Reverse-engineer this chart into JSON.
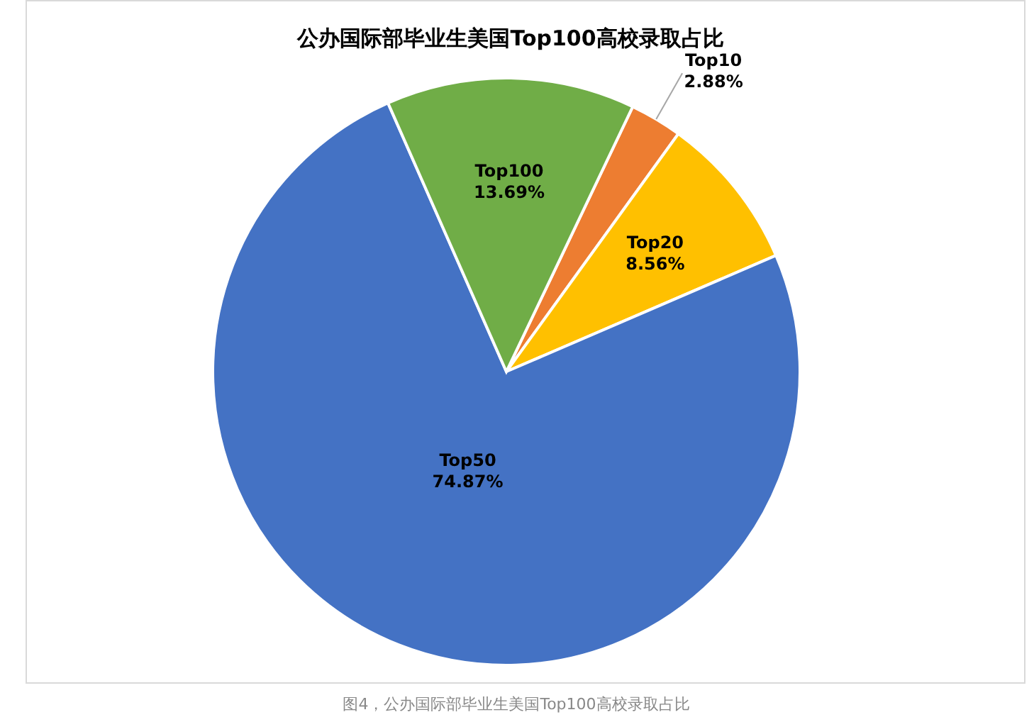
{
  "chart_data": {
    "type": "pie",
    "title": "公办国际部毕业生美国Top100高校录取占比",
    "categories": [
      "Top10",
      "Top20",
      "Top50",
      "Top100"
    ],
    "values": [
      2.88,
      8.56,
      74.87,
      13.69
    ],
    "value_labels": [
      "2.88%",
      "8.56%",
      "74.87%",
      "13.69%"
    ],
    "colors": [
      "#ed7d31",
      "#ffc000",
      "#4472c4",
      "#70ad47"
    ],
    "legend": false,
    "annotations": [
      "图4，公办国际部毕业生美国Top100高校录取占比"
    ]
  }
}
